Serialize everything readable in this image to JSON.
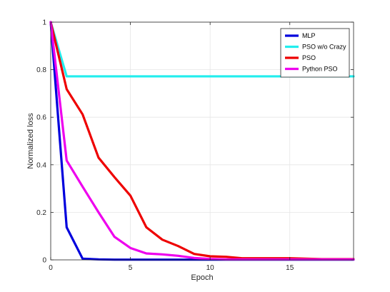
{
  "chart_data": {
    "type": "line",
    "xlabel": "Epoch",
    "ylabel": "Normalized loss",
    "xlim": [
      0,
      19
    ],
    "ylim": [
      0,
      1
    ],
    "xticks": [
      0,
      5,
      10,
      15
    ],
    "yticks": [
      0,
      0.2,
      0.4,
      0.6,
      0.8,
      1
    ],
    "x_tick_labels": [
      "0",
      "5",
      "10",
      "15"
    ],
    "y_tick_labels": [
      "0",
      "0.2",
      "0.4",
      "0.6",
      "0.8",
      "1"
    ],
    "grid": true,
    "legend_position": "top-right",
    "x": [
      0,
      1,
      2,
      3,
      4,
      5,
      6,
      7,
      8,
      9,
      10,
      11,
      12,
      13,
      14,
      15,
      16,
      17,
      18,
      19
    ],
    "series": [
      {
        "name": "MLP",
        "color": "#0000dd",
        "values": [
          1.0,
          0.137,
          0.005,
          0.002,
          0.001,
          0.001,
          0.001,
          0.001,
          0.001,
          0.001,
          0.001,
          0.001,
          0.001,
          0.001,
          0.001,
          0.001,
          0.001,
          0.001,
          0.001,
          0.001
        ]
      },
      {
        "name": "PSO w/o Crazy",
        "color": "#22eeee",
        "values": [
          1.0,
          0.772,
          0.772,
          0.772,
          0.772,
          0.772,
          0.772,
          0.772,
          0.772,
          0.772,
          0.772,
          0.772,
          0.772,
          0.772,
          0.772,
          0.772,
          0.772,
          0.772,
          0.772,
          0.772
        ]
      },
      {
        "name": "PSO",
        "color": "#ee0000",
        "values": [
          1.0,
          0.718,
          0.612,
          0.43,
          0.348,
          0.27,
          0.137,
          0.085,
          0.058,
          0.025,
          0.015,
          0.013,
          0.007,
          0.007,
          0.007,
          0.007,
          0.005,
          0.003,
          0.003,
          0.003
        ]
      },
      {
        "name": "Python PSO",
        "color": "#ee00ee",
        "values": [
          1.0,
          0.418,
          0.308,
          0.2,
          0.097,
          0.05,
          0.027,
          0.023,
          0.017,
          0.008,
          0.004,
          0.002,
          0.002,
          0.002,
          0.002,
          0.002,
          0.002,
          0.002,
          0.002,
          0.002
        ]
      }
    ]
  }
}
